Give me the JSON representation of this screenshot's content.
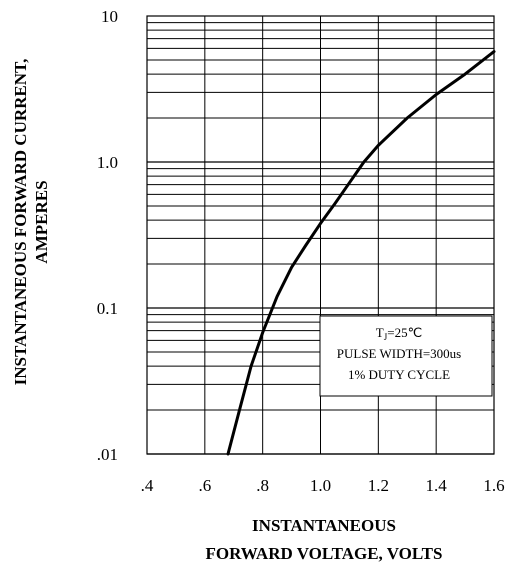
{
  "chart_data": {
    "type": "line",
    "title": "",
    "xlabel_lines": [
      "INSTANTANEOUS",
      "FORWARD VOLTAGE, VOLTS"
    ],
    "ylabel_lines": [
      "INSTANTANEOUS FORWARD CURRENT,",
      "AMPERES"
    ],
    "x_scale": "linear",
    "y_scale": "log",
    "xlim": [
      0.4,
      1.6
    ],
    "ylim": [
      0.01,
      10
    ],
    "x_ticks": [
      0.4,
      0.6,
      0.8,
      1.0,
      1.2,
      1.4,
      1.6
    ],
    "x_tick_labels": [
      ".4",
      ".6",
      ".8",
      "1.0",
      "1.2",
      "1.4",
      "1.6"
    ],
    "y_ticks": [
      0.01,
      0.1,
      1,
      10
    ],
    "y_tick_labels": [
      ".01",
      "0.1",
      "1.0",
      "10"
    ],
    "grid": true,
    "series": [
      {
        "x": [
          0.68,
          0.72,
          0.76,
          0.8,
          0.85,
          0.9,
          0.95,
          1.0,
          1.05,
          1.1,
          1.15,
          1.2,
          1.3,
          1.4,
          1.5,
          1.6
        ],
        "y": [
          0.01,
          0.02,
          0.04,
          0.068,
          0.12,
          0.19,
          0.27,
          0.38,
          0.52,
          0.72,
          1.0,
          1.3,
          2.0,
          2.9,
          4.0,
          5.7
        ]
      }
    ],
    "annotation": {
      "line1_main": "T",
      "line1_sub": "J",
      "line1_rest": "=25℃",
      "line2": "PULSE WIDTH=300us",
      "line3": "1% DUTY CYCLE"
    }
  }
}
